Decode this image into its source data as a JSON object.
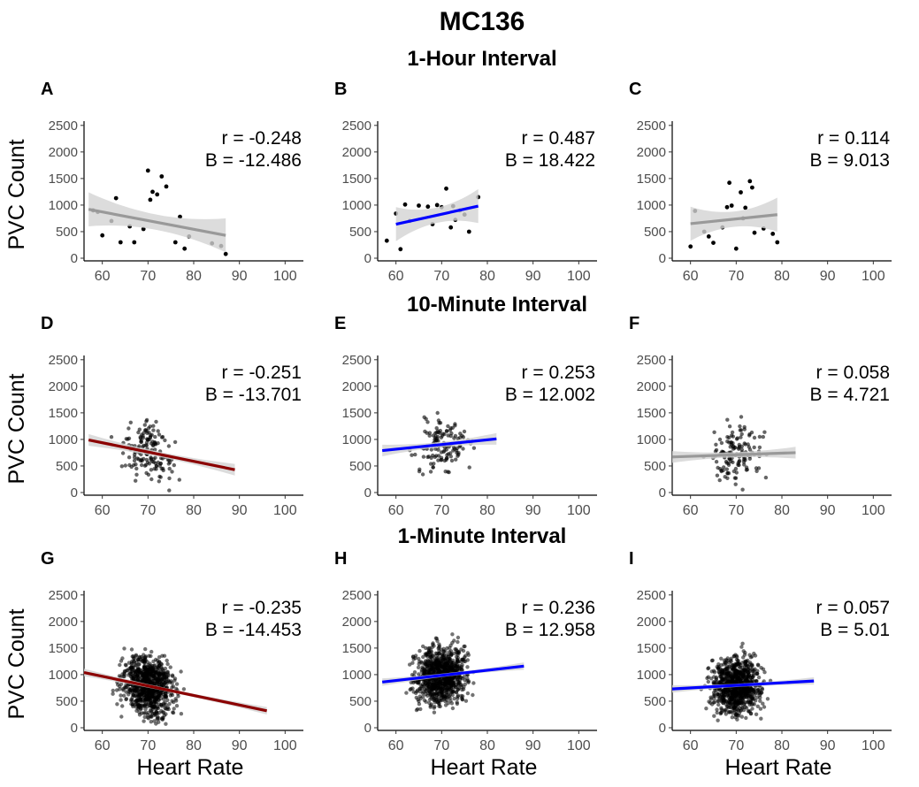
{
  "title": "MC136",
  "sections": [
    "1-Hour Interval",
    "10-Minute Interval",
    "1-Minute Interval"
  ],
  "axis": {
    "ylabel": "PVC Count",
    "xlabel": "Heart Rate",
    "x_ticks": [
      60,
      70,
      80,
      90,
      100
    ],
    "y_ticks": [
      0,
      500,
      1000,
      1500,
      2000,
      2500
    ],
    "xlim": [
      56,
      104
    ],
    "ylim": [
      -50,
      2580
    ]
  },
  "colors": {
    "negative_significant": "#8b0000",
    "positive_significant": "#0000ff",
    "nonsignificant": "#999999",
    "band": "#d3d3d3",
    "points": "#000000"
  },
  "chart_data": [
    {
      "type": "scatter",
      "panel": "A",
      "r_text": "r = -0.248",
      "b_text": "B = -12.486",
      "fit": "nonsignificant",
      "x": [
        58,
        59,
        60,
        62,
        63,
        64,
        66,
        67,
        69,
        70,
        70.5,
        71,
        72,
        73,
        74,
        76,
        77,
        78,
        79,
        84,
        86,
        87
      ],
      "y": [
        900,
        870,
        430,
        700,
        1130,
        300,
        600,
        300,
        550,
        1650,
        1100,
        1250,
        1200,
        1540,
        1350,
        300,
        780,
        180,
        410,
        280,
        230,
        80
      ],
      "fit_range": [
        57,
        87
      ],
      "fit_y": [
        920,
        430
      ]
    },
    {
      "type": "scatter",
      "panel": "B",
      "r_text": "r = 0.487",
      "b_text": "B = 18.422",
      "fit": "positive_significant",
      "x": [
        58,
        60,
        61,
        62,
        63,
        65,
        67,
        68,
        69,
        70,
        71,
        72,
        72.5,
        73,
        74,
        75,
        76,
        78
      ],
      "y": [
        330,
        840,
        170,
        1010,
        700,
        990,
        970,
        640,
        1000,
        960,
        1310,
        580,
        980,
        720,
        900,
        820,
        500,
        1150
      ],
      "fit_range": [
        60,
        78
      ],
      "fit_y": [
        640,
        980
      ]
    },
    {
      "type": "scatter",
      "panel": "C",
      "r_text": "r = 0.114",
      "b_text": "B = 9.013",
      "fit": "nonsignificant",
      "x": [
        60,
        61,
        63,
        64,
        65,
        67,
        68,
        68.5,
        69,
        70,
        71,
        71.5,
        72,
        73,
        73.5,
        74,
        76,
        78,
        79
      ],
      "y": [
        220,
        890,
        500,
        410,
        290,
        580,
        960,
        1420,
        990,
        180,
        1240,
        750,
        950,
        1450,
        1330,
        480,
        560,
        460,
        300
      ],
      "fit_range": [
        60,
        79
      ],
      "fit_y": [
        650,
        820
      ]
    },
    {
      "type": "scatter",
      "panel": "D",
      "r_text": "r = -0.251",
      "b_text": "B = -13.701",
      "fit": "negative_significant",
      "n_points": 150,
      "x_range": [
        57,
        89
      ],
      "y_range": [
        0,
        2100
      ],
      "seed": 11,
      "fit_range": [
        57,
        89
      ],
      "fit_y": [
        990,
        430
      ]
    },
    {
      "type": "scatter",
      "panel": "E",
      "r_text": "r = 0.253",
      "b_text": "B = 12.002",
      "fit": "positive_significant",
      "n_points": 130,
      "x_range": [
        57,
        83
      ],
      "y_range": [
        0,
        2000
      ],
      "seed": 23,
      "fit_range": [
        57,
        82
      ],
      "fit_y": [
        790,
        1010
      ]
    },
    {
      "type": "scatter",
      "panel": "F",
      "r_text": "r = 0.058",
      "b_text": "B = 4.721",
      "fit": "nonsignificant",
      "n_points": 140,
      "x_range": [
        56,
        83
      ],
      "y_range": [
        0,
        2000
      ],
      "seed": 37,
      "fit_range": [
        56,
        83
      ],
      "fit_y": [
        670,
        750
      ]
    },
    {
      "type": "scatter",
      "panel": "G",
      "r_text": "r = -0.235",
      "b_text": "B = -14.453",
      "fit": "negative_significant",
      "n_points": 900,
      "x_range": [
        56,
        96
      ],
      "y_range": [
        0,
        2350
      ],
      "seed": 41,
      "fit_range": [
        56,
        96
      ],
      "fit_y": [
        1040,
        320
      ]
    },
    {
      "type": "scatter",
      "panel": "H",
      "r_text": "r = 0.236",
      "b_text": "B = 12.958",
      "fit": "positive_significant",
      "n_points": 900,
      "x_range": [
        57,
        88
      ],
      "y_range": [
        0,
        2250
      ],
      "seed": 53,
      "fit_range": [
        57,
        88
      ],
      "fit_y": [
        860,
        1160
      ]
    },
    {
      "type": "scatter",
      "panel": "I",
      "r_text": "r = 0.057",
      "b_text": "B = 5.01",
      "fit": "positive_significant",
      "n_points": 900,
      "x_range": [
        56,
        87
      ],
      "y_range": [
        0,
        2250
      ],
      "seed": 67,
      "fit_range": [
        56,
        87
      ],
      "fit_y": [
        730,
        880
      ]
    }
  ]
}
